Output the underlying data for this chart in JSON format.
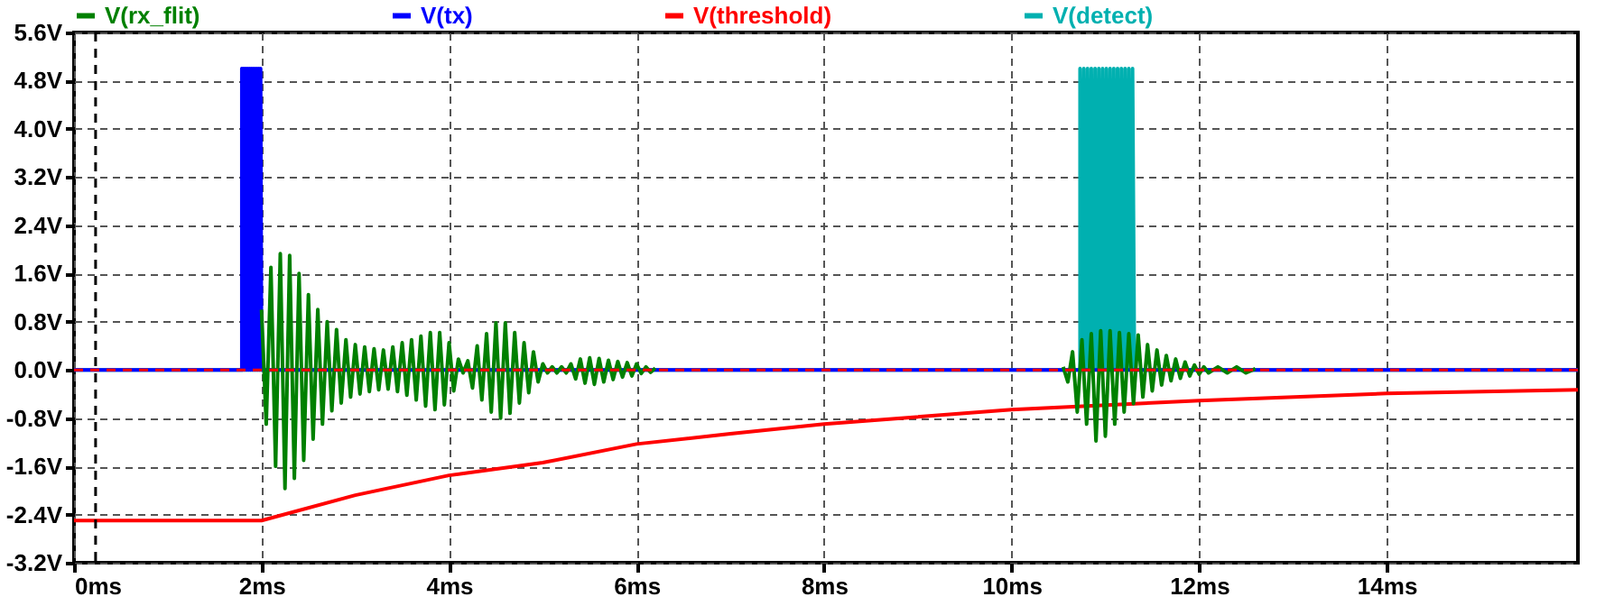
{
  "chart_data": {
    "type": "line",
    "xlim": [
      0,
      16.04
    ],
    "ylim": [
      -3.2,
      5.6
    ],
    "xticks": [
      {
        "value": 0,
        "label": "0ms"
      },
      {
        "value": 2,
        "label": "2ms"
      },
      {
        "value": 4,
        "label": "4ms"
      },
      {
        "value": 6,
        "label": "6ms"
      },
      {
        "value": 8,
        "label": "8ms"
      },
      {
        "value": 10,
        "label": "10ms"
      },
      {
        "value": 12,
        "label": "12ms"
      },
      {
        "value": 14,
        "label": "14ms"
      }
    ],
    "yticks": [
      {
        "value": -3.2,
        "label": "-3.2V"
      },
      {
        "value": -2.4,
        "label": "-2.4V"
      },
      {
        "value": -1.6,
        "label": "-1.6V"
      },
      {
        "value": -0.8,
        "label": "-0.8V"
      },
      {
        "value": 0,
        "label": "0.0V"
      },
      {
        "value": 0.8,
        "label": "0.8V"
      },
      {
        "value": 1.6,
        "label": "1.6V"
      },
      {
        "value": 2.4,
        "label": "2.4V"
      },
      {
        "value": 3.2,
        "label": "3.2V"
      },
      {
        "value": 4,
        "label": "4.0V"
      },
      {
        "value": 4.8,
        "label": "4.8V"
      },
      {
        "value": 5.6,
        "label": "5.6V"
      }
    ],
    "grid": true,
    "legend": "top",
    "series": [
      {
        "name": "V(rx_flit)",
        "color": "#008000",
        "x": [
          2.0,
          2.05,
          2.1,
          2.15,
          2.2,
          2.25,
          2.3,
          2.35,
          2.4,
          2.45,
          2.5,
          2.55,
          2.6,
          2.65,
          2.7,
          2.75,
          2.8,
          2.85,
          2.9,
          2.95,
          3.0,
          3.05,
          3.1,
          3.15,
          3.2,
          3.25,
          3.3,
          3.35,
          3.4,
          3.45,
          3.5,
          3.55,
          3.6,
          3.65,
          3.7,
          3.75,
          3.8,
          3.85,
          3.9,
          3.95,
          4.0,
          4.05,
          4.1,
          4.15,
          4.2,
          4.25,
          4.3,
          4.35,
          4.4,
          4.45,
          4.5,
          4.55,
          4.6,
          4.65,
          4.7,
          4.75,
          4.8,
          4.85,
          4.9,
          4.95,
          5.0,
          5.05,
          5.1,
          5.15,
          5.2,
          5.25,
          5.3,
          5.35,
          5.4,
          5.45,
          5.5,
          5.55,
          5.6,
          5.65,
          5.7,
          5.75,
          5.8,
          5.85,
          5.9,
          5.95,
          6.0,
          6.05,
          6.1,
          6.15,
          6.2,
          8,
          10.55,
          10.6,
          10.65,
          10.7,
          10.75,
          10.8,
          10.85,
          10.9,
          10.95,
          11.0,
          11.05,
          11.1,
          11.15,
          11.2,
          11.25,
          11.3,
          11.35,
          11.4,
          11.45,
          11.5,
          11.55,
          11.6,
          11.65,
          11.7,
          11.75,
          11.8,
          11.85,
          11.9,
          11.95,
          12.0,
          12.05,
          12.1,
          12.2,
          12.3,
          12.4,
          12.5,
          12.6
        ],
        "values": [
          1.0,
          -0.9,
          1.7,
          -1.6,
          1.93,
          -1.97,
          1.9,
          -1.8,
          1.6,
          -1.5,
          1.25,
          -1.15,
          1.0,
          -0.9,
          0.8,
          -0.68,
          0.67,
          -0.55,
          0.5,
          -0.45,
          0.42,
          -0.4,
          0.38,
          -0.36,
          0.35,
          -0.33,
          0.33,
          -0.32,
          0.38,
          -0.36,
          0.45,
          -0.42,
          0.5,
          -0.5,
          0.56,
          -0.6,
          0.62,
          -0.66,
          0.62,
          -0.58,
          0.45,
          -0.35,
          0.18,
          -0.05,
          0.15,
          -0.3,
          0.4,
          -0.5,
          0.6,
          -0.7,
          0.78,
          -0.8,
          0.78,
          -0.72,
          0.62,
          -0.55,
          0.45,
          -0.38,
          0.3,
          -0.2,
          0.1,
          -0.05,
          0.05,
          -0.05,
          0.05,
          -0.05,
          0.1,
          -0.15,
          0.18,
          -0.22,
          0.2,
          -0.24,
          0.19,
          -0.2,
          0.16,
          -0.16,
          0.14,
          -0.12,
          0.12,
          -0.1,
          0.1,
          -0.06,
          0.05,
          -0.04,
          0.03,
          null,
          0.05,
          -0.2,
          0.3,
          -0.7,
          0.5,
          -0.9,
          0.6,
          -1.18,
          0.65,
          -1.1,
          0.65,
          -0.9,
          0.62,
          -0.7,
          0.6,
          -0.56,
          0.58,
          -0.45,
          0.42,
          -0.35,
          0.33,
          -0.25,
          0.24,
          -0.18,
          0.18,
          -0.14,
          0.13,
          -0.1,
          0.08,
          -0.07,
          0.05,
          -0.05,
          0.05,
          -0.05,
          0.05,
          -0.05,
          0.02
        ]
      },
      {
        "name": "V(tx)",
        "color": "#0000ff",
        "x": [
          0,
          1.79,
          1.79,
          1.8,
          1.81,
          1.82,
          1.83,
          1.84,
          1.85,
          1.86,
          1.87,
          1.88,
          1.89,
          1.9,
          1.91,
          1.92,
          1.93,
          1.94,
          1.95,
          1.96,
          1.97,
          1.98,
          1.99,
          2.0,
          16.04
        ],
        "values": [
          0,
          0,
          5,
          0,
          5,
          0,
          5,
          0,
          5,
          0,
          5,
          0,
          5,
          0,
          5,
          0,
          5,
          0,
          5,
          0,
          5,
          0,
          5,
          0,
          0
        ]
      },
      {
        "name": "V(threshold)",
        "color": "#ff0000",
        "x": [
          0,
          2,
          3,
          4,
          5,
          6,
          7,
          8,
          10,
          12,
          14,
          16.04
        ],
        "values": [
          -2.5,
          -2.5,
          -2.08,
          -1.75,
          -1.54,
          -1.23,
          -1.06,
          -0.9,
          -0.66,
          -0.51,
          -0.39,
          -0.33
        ]
      },
      {
        "name": "V(detect)",
        "color": "#00b0b0",
        "x": [
          0,
          10.73,
          10.73,
          10.75,
          10.77,
          10.79,
          10.81,
          10.83,
          10.85,
          10.87,
          10.89,
          10.91,
          10.93,
          10.95,
          10.97,
          10.99,
          11.01,
          11.03,
          11.05,
          11.07,
          11.09,
          11.11,
          11.13,
          11.15,
          11.17,
          11.19,
          11.21,
          11.23,
          11.25,
          11.27,
          11.29,
          11.31,
          16.04
        ],
        "values": [
          0,
          0,
          5,
          0,
          5,
          0,
          5,
          0,
          5,
          0,
          5,
          0,
          5,
          0,
          5,
          0,
          5,
          0,
          5,
          0,
          5,
          0,
          5,
          0,
          5,
          0,
          5,
          0,
          5,
          0,
          5,
          0,
          0
        ]
      }
    ],
    "ref_lines": [
      {
        "axis": "x",
        "value": 0.23,
        "color": "#000000",
        "line_style": "dashed"
      },
      {
        "axis": "y",
        "value": 0,
        "color": "#ff0000",
        "line_style": "dashed"
      }
    ]
  }
}
